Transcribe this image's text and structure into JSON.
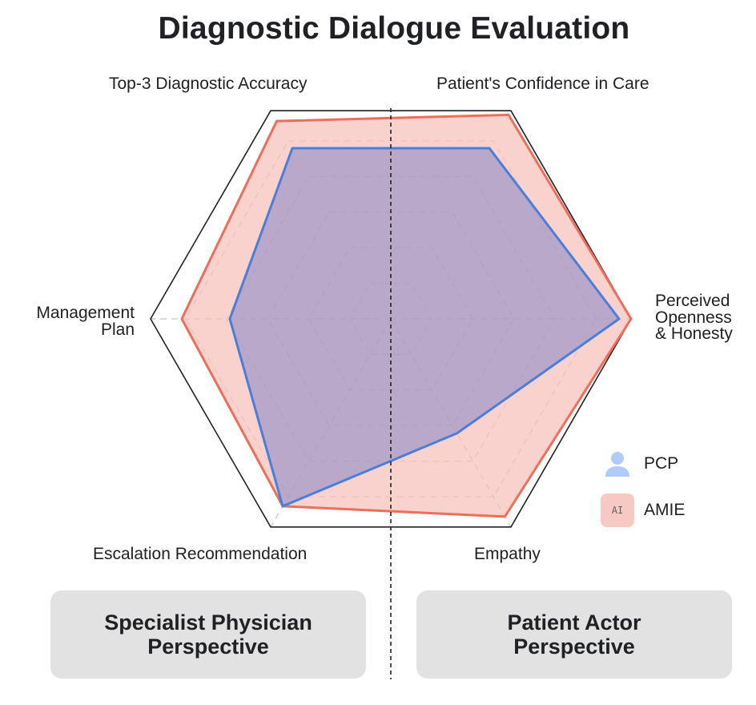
{
  "title": "Diagnostic Dialogue Evaluation",
  "chart_data": {
    "type": "radar",
    "title": "Diagnostic Dialogue Evaluation",
    "axes": [
      "Top-3 Diagnostic Accuracy",
      "Patient's Confidence in Care",
      "Perceived Openness & Honesty",
      "Empathy",
      "Escalation Recommendation",
      "Management Plan"
    ],
    "axis_labels_display": {
      "top_left": "Top-3 Diagnostic Accuracy",
      "top_right": "Patient's Confidence in Care",
      "right": [
        "Perceived",
        "Openness",
        "& Honesty"
      ],
      "bottom_right": "Empathy",
      "bottom_left": "Escalation Recommendation",
      "left": [
        "Management",
        "Plan"
      ]
    },
    "grid_levels": 5,
    "range": [
      0,
      1
    ],
    "series": [
      {
        "name": "PCP",
        "values": [
          0.82,
          0.82,
          0.95,
          0.55,
          0.9,
          0.67
        ],
        "color": "#4a7fd9",
        "fill": "rgba(135,135,200,0.55)"
      },
      {
        "name": "AMIE",
        "values": [
          0.95,
          0.98,
          1.0,
          0.95,
          0.9,
          0.87
        ],
        "color": "#ec6e5b",
        "fill": "rgba(246,190,184,0.7)"
      }
    ],
    "legend": "bottom-right"
  },
  "legend": {
    "pcp_label": "PCP",
    "amie_label": "AMIE",
    "ai_badge": "AI"
  },
  "perspectives": {
    "specialist": "Specialist Physician Perspective",
    "patient": "Patient Actor Perspective"
  }
}
